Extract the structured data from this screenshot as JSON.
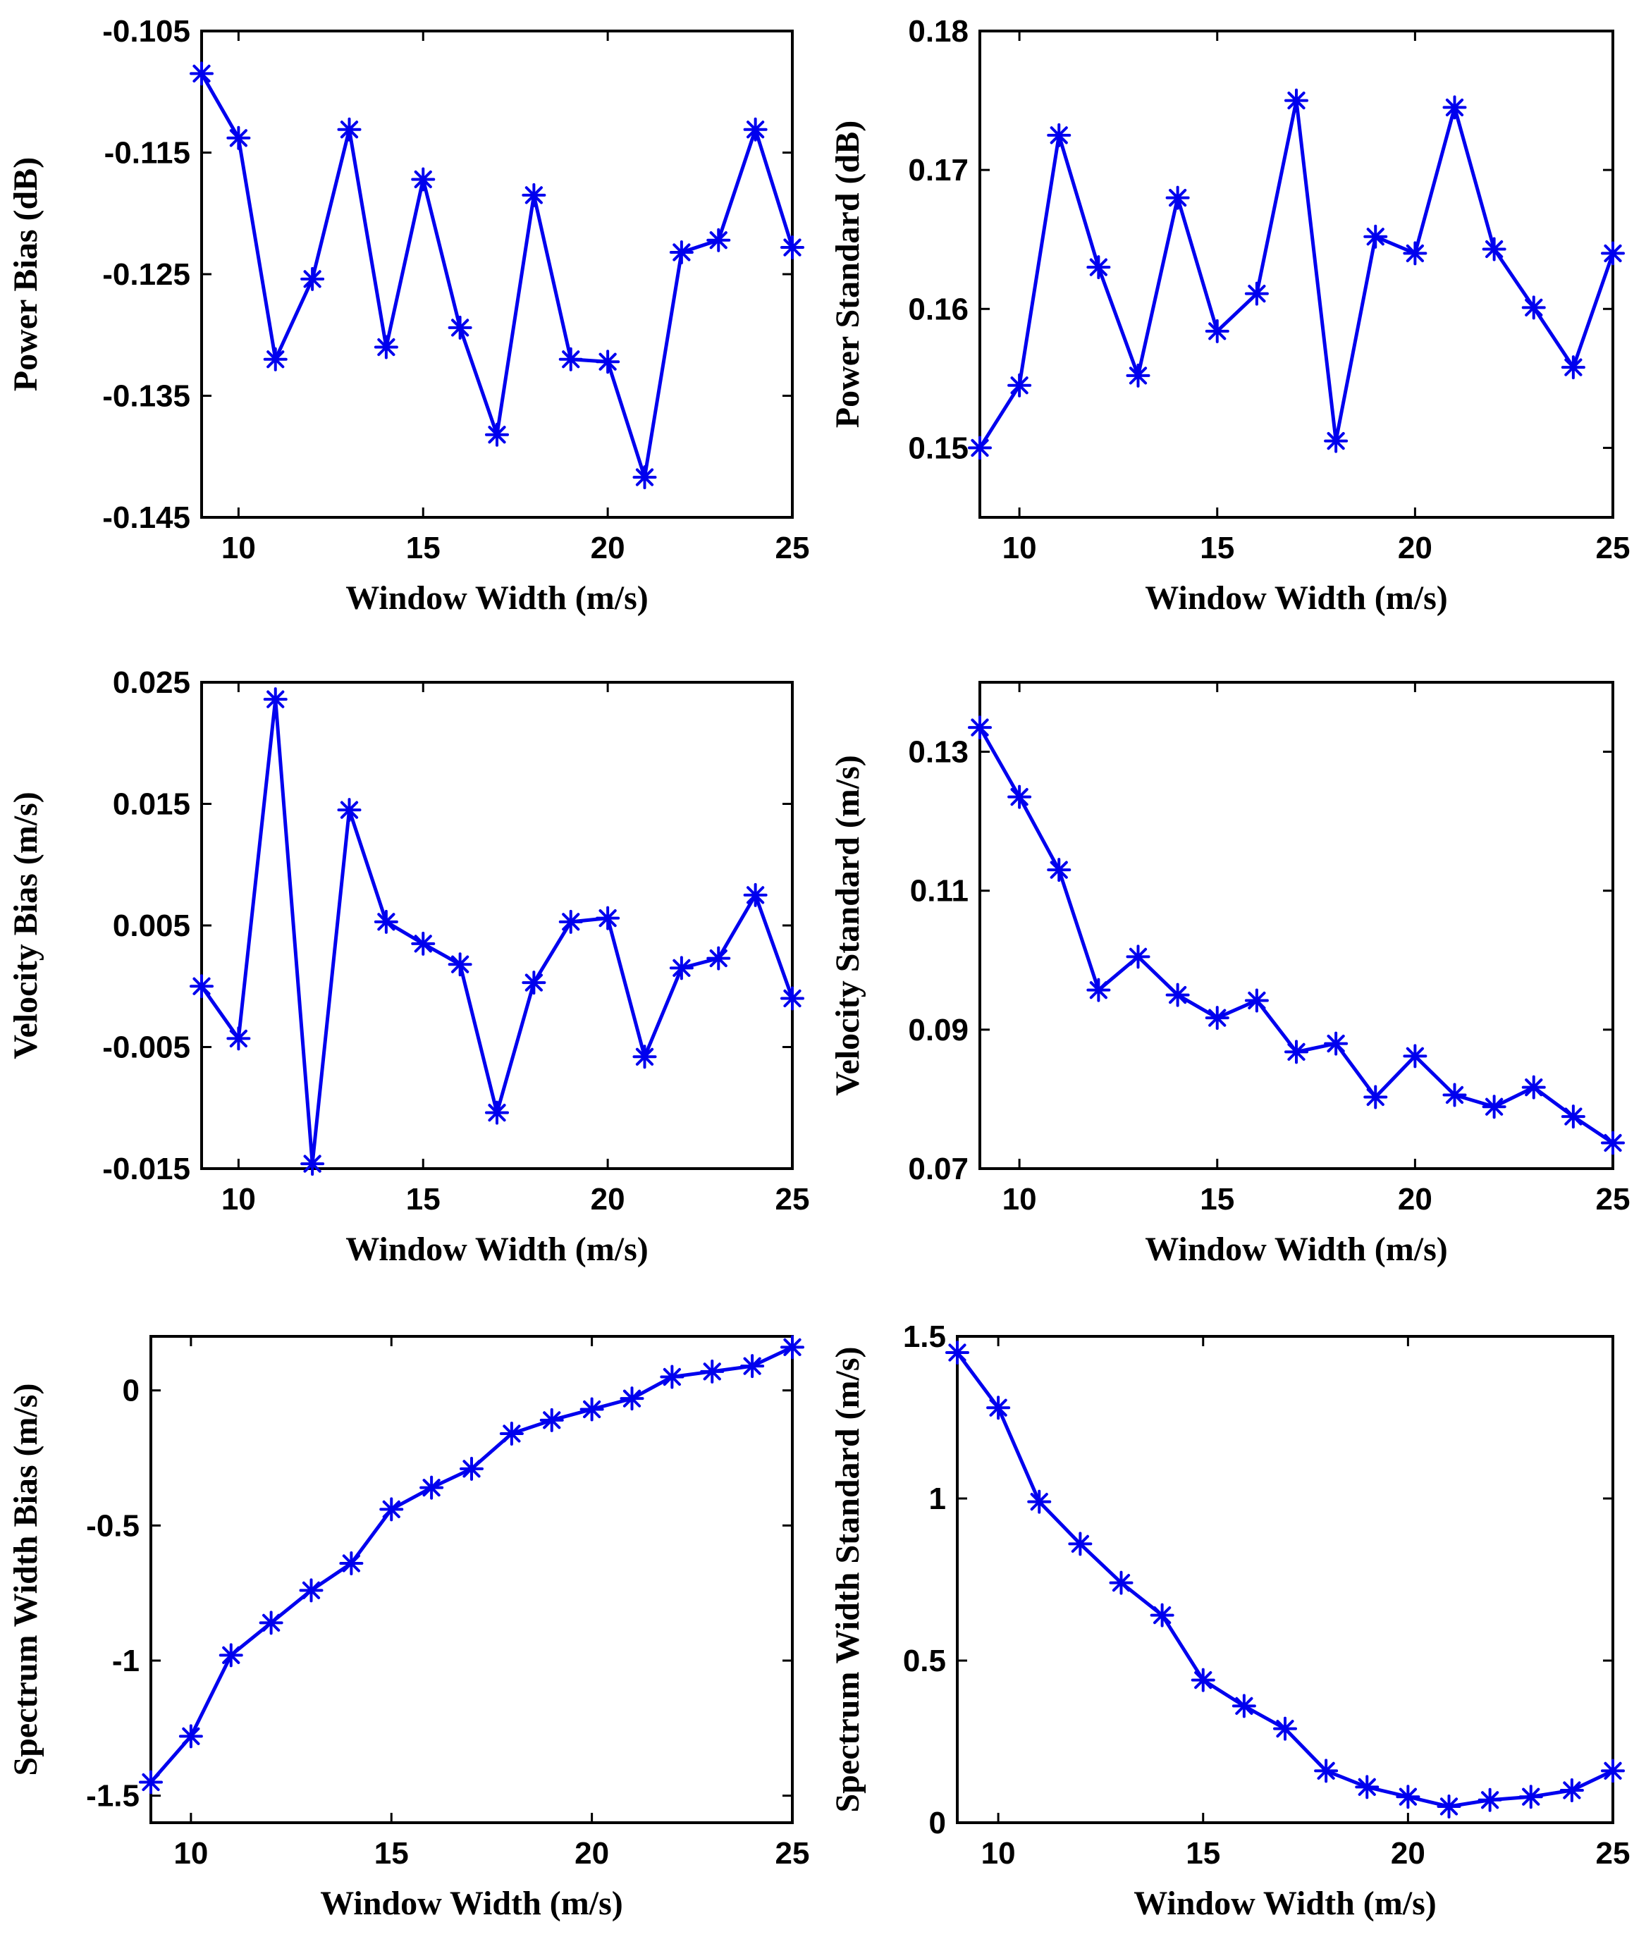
{
  "colors": {
    "series": "#0000ee",
    "axes": "#000000",
    "background": "#ffffff"
  },
  "chart_data": [
    {
      "type": "line",
      "panel": "top-left",
      "title": "",
      "xlabel": "Window Width (m/s)",
      "ylabel": "Power Bias (dB)",
      "xlim": [
        9,
        25
      ],
      "ylim": [
        -0.145,
        -0.105
      ],
      "xticks": [
        10,
        15,
        20,
        25
      ],
      "xtick_labels": [
        "10",
        "15",
        "20",
        "25"
      ],
      "yticks": [
        -0.145,
        -0.135,
        -0.125,
        -0.115,
        -0.105
      ],
      "ytick_labels": [
        "-0.145",
        "-0.135",
        "-0.125",
        "-0.115",
        "-0.105"
      ],
      "marker": "asterisk",
      "x": [
        9,
        10,
        11,
        12,
        13,
        14,
        15,
        16,
        17,
        18,
        19,
        20,
        21,
        22,
        23,
        24,
        25
      ],
      "y": [
        -0.1085,
        -0.1138,
        -0.132,
        -0.1254,
        -0.1131,
        -0.131,
        -0.1172,
        -0.1294,
        -0.1382,
        -0.1185,
        -0.132,
        -0.1322,
        -0.1417,
        -0.1232,
        -0.1222,
        -0.1131,
        -0.1228
      ]
    },
    {
      "type": "line",
      "panel": "top-right",
      "title": "",
      "xlabel": "Window Width (m/s)",
      "ylabel": "Power Standard (dB)",
      "xlim": [
        9,
        25
      ],
      "ylim": [
        0.145,
        0.18
      ],
      "xticks": [
        10,
        15,
        20,
        25
      ],
      "xtick_labels": [
        "10",
        "15",
        "20",
        "25"
      ],
      "yticks": [
        0.15,
        0.16,
        0.17,
        0.18
      ],
      "ytick_labels": [
        "0.15",
        "0.16",
        "0.17",
        "0.18"
      ],
      "marker": "asterisk",
      "x": [
        9,
        10,
        11,
        12,
        13,
        14,
        15,
        16,
        17,
        18,
        19,
        20,
        21,
        22,
        23,
        24,
        25
      ],
      "y": [
        0.15,
        0.1545,
        0.1725,
        0.163,
        0.1552,
        0.168,
        0.1584,
        0.1611,
        0.175,
        0.1505,
        0.1652,
        0.164,
        0.1745,
        0.1643,
        0.1601,
        0.1558,
        0.164
      ]
    },
    {
      "type": "line",
      "panel": "middle-left",
      "title": "",
      "xlabel": "Window Width (m/s)",
      "ylabel": "Velocity Bias (m/s)",
      "xlim": [
        9,
        25
      ],
      "ylim": [
        -0.015,
        0.025
      ],
      "xticks": [
        10,
        15,
        20,
        25
      ],
      "xtick_labels": [
        "10",
        "15",
        "20",
        "25"
      ],
      "yticks": [
        -0.015,
        -0.005,
        0.005,
        0.015,
        0.025
      ],
      "ytick_labels": [
        "-0.015",
        "-0.005",
        "0.005",
        "0.015",
        "0.025"
      ],
      "marker": "asterisk",
      "x": [
        9,
        10,
        11,
        12,
        13,
        14,
        15,
        16,
        17,
        18,
        19,
        20,
        21,
        22,
        23,
        24,
        25
      ],
      "y": [
        0.0,
        -0.0043,
        0.0236,
        -0.0146,
        0.0145,
        0.0053,
        0.0035,
        0.0018,
        -0.0104,
        0.0003,
        0.0053,
        0.0056,
        -0.0058,
        0.0015,
        0.0023,
        0.0075,
        -0.001
      ]
    },
    {
      "type": "line",
      "panel": "middle-right",
      "title": "",
      "xlabel": "Window Width (m/s)",
      "ylabel": "Velocity Standard (m/s)",
      "xlim": [
        9,
        25
      ],
      "ylim": [
        0.07,
        0.14
      ],
      "xticks": [
        10,
        15,
        20,
        25
      ],
      "xtick_labels": [
        "10",
        "15",
        "20",
        "25"
      ],
      "yticks": [
        0.07,
        0.09,
        0.11,
        0.13
      ],
      "ytick_labels": [
        "0.07",
        "0.09",
        "0.11",
        "0.13"
      ],
      "marker": "asterisk",
      "x": [
        9,
        10,
        11,
        12,
        13,
        14,
        15,
        16,
        17,
        18,
        19,
        20,
        21,
        22,
        23,
        24,
        25
      ],
      "y": [
        0.1335,
        0.1235,
        0.113,
        0.0957,
        0.1005,
        0.095,
        0.0917,
        0.0942,
        0.0868,
        0.088,
        0.0803,
        0.0862,
        0.0806,
        0.0789,
        0.0817,
        0.0775,
        0.0737
      ]
    },
    {
      "type": "line",
      "panel": "bottom-left",
      "title": "",
      "xlabel": "Window Width (m/s)",
      "ylabel": "Spectrum Width Bias (m/s)",
      "xlim": [
        9,
        25
      ],
      "ylim": [
        -1.6,
        0.2
      ],
      "xticks": [
        10,
        15,
        20,
        25
      ],
      "xtick_labels": [
        "10",
        "15",
        "20",
        "25"
      ],
      "yticks": [
        -1.5,
        -1,
        -0.5,
        0
      ],
      "ytick_labels": [
        "-1.5",
        "-1",
        "-0.5",
        "0"
      ],
      "marker": "asterisk",
      "x": [
        9,
        10,
        11,
        12,
        13,
        14,
        15,
        16,
        17,
        18,
        19,
        20,
        21,
        22,
        23,
        24,
        25
      ],
      "y": [
        -1.45,
        -1.28,
        -0.98,
        -0.86,
        -0.74,
        -0.64,
        -0.44,
        -0.36,
        -0.29,
        -0.16,
        -0.11,
        -0.07,
        -0.03,
        0.05,
        0.07,
        0.09,
        0.16
      ]
    },
    {
      "type": "line",
      "panel": "bottom-right",
      "title": "",
      "xlabel": "Window Width (m/s)",
      "ylabel": "Spectrum Width Standard (m/s)",
      "xlim": [
        9,
        25
      ],
      "ylim": [
        0,
        1.5
      ],
      "xticks": [
        10,
        15,
        20,
        25
      ],
      "xtick_labels": [
        "10",
        "15",
        "20",
        "25"
      ],
      "yticks": [
        0,
        0.5,
        1,
        1.5
      ],
      "ytick_labels": [
        "0",
        "0.5",
        "1",
        "1.5"
      ],
      "marker": "asterisk",
      "x": [
        9,
        10,
        11,
        12,
        13,
        14,
        15,
        16,
        17,
        18,
        19,
        20,
        21,
        22,
        23,
        24,
        25
      ],
      "y": [
        1.45,
        1.28,
        0.99,
        0.86,
        0.74,
        0.64,
        0.44,
        0.36,
        0.29,
        0.16,
        0.11,
        0.08,
        0.05,
        0.07,
        0.08,
        0.1,
        0.16
      ]
    }
  ]
}
